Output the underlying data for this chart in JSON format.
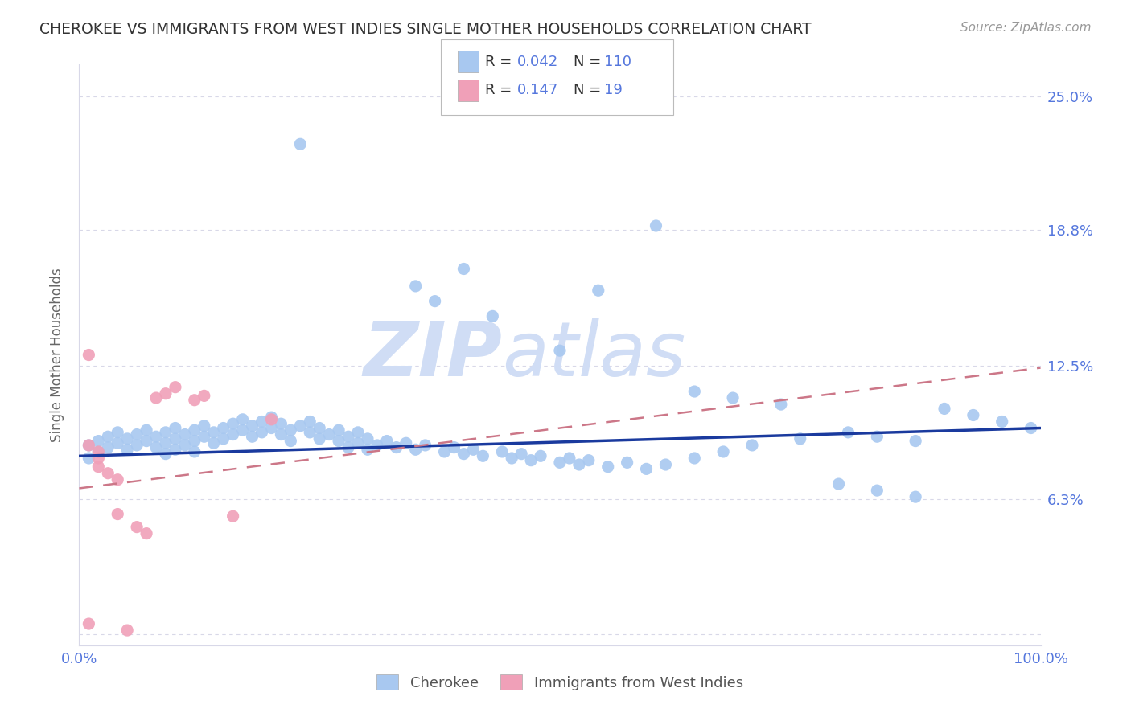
{
  "title": "CHEROKEE VS IMMIGRANTS FROM WEST INDIES SINGLE MOTHER HOUSEHOLDS CORRELATION CHART",
  "source": "Source: ZipAtlas.com",
  "ylabel": "Single Mother Households",
  "xlim": [
    0.0,
    1.0
  ],
  "ylim": [
    -0.005,
    0.265
  ],
  "ytick_positions": [
    0.0,
    0.063,
    0.125,
    0.188,
    0.25
  ],
  "ytick_labels": [
    "",
    "6.3%",
    "12.5%",
    "18.8%",
    "25.0%"
  ],
  "blue_color": "#a8c8f0",
  "pink_color": "#f0a0b8",
  "blue_line_color": "#1a3a9e",
  "pink_line_color": "#cc7788",
  "title_color": "#333333",
  "tick_color": "#5577dd",
  "background_color": "#ffffff",
  "grid_color": "#d8d8e8",
  "watermark_color": "#d0ddf5",
  "blue_line_start_y": 0.083,
  "blue_line_end_y": 0.096,
  "pink_line_start_y": 0.068,
  "pink_line_end_y": 0.124,
  "blue_x": [
    0.01,
    0.01,
    0.02,
    0.02,
    0.03,
    0.03,
    0.04,
    0.04,
    0.05,
    0.05,
    0.06,
    0.06,
    0.07,
    0.07,
    0.08,
    0.08,
    0.09,
    0.09,
    0.09,
    0.1,
    0.1,
    0.1,
    0.11,
    0.11,
    0.12,
    0.12,
    0.12,
    0.13,
    0.13,
    0.14,
    0.14,
    0.15,
    0.15,
    0.16,
    0.16,
    0.17,
    0.17,
    0.18,
    0.18,
    0.19,
    0.19,
    0.2,
    0.2,
    0.21,
    0.21,
    0.22,
    0.22,
    0.23,
    0.24,
    0.24,
    0.25,
    0.25,
    0.26,
    0.27,
    0.27,
    0.28,
    0.28,
    0.29,
    0.29,
    0.3,
    0.3,
    0.31,
    0.32,
    0.33,
    0.34,
    0.35,
    0.36,
    0.38,
    0.39,
    0.4,
    0.41,
    0.42,
    0.44,
    0.45,
    0.46,
    0.47,
    0.48,
    0.5,
    0.51,
    0.52,
    0.53,
    0.55,
    0.57,
    0.59,
    0.61,
    0.64,
    0.67,
    0.7,
    0.75,
    0.8,
    0.83,
    0.87,
    0.23,
    0.35,
    0.37,
    0.4,
    0.43,
    0.5,
    0.54,
    0.6,
    0.64,
    0.68,
    0.73,
    0.79,
    0.83,
    0.87,
    0.9,
    0.93,
    0.96,
    0.99
  ],
  "blue_y": [
    0.088,
    0.082,
    0.09,
    0.085,
    0.092,
    0.087,
    0.094,
    0.089,
    0.091,
    0.086,
    0.093,
    0.088,
    0.095,
    0.09,
    0.092,
    0.087,
    0.094,
    0.089,
    0.084,
    0.096,
    0.091,
    0.086,
    0.093,
    0.088,
    0.095,
    0.09,
    0.085,
    0.097,
    0.092,
    0.094,
    0.089,
    0.096,
    0.091,
    0.098,
    0.093,
    0.1,
    0.095,
    0.097,
    0.092,
    0.099,
    0.094,
    0.101,
    0.096,
    0.098,
    0.093,
    0.095,
    0.09,
    0.097,
    0.099,
    0.094,
    0.096,
    0.091,
    0.093,
    0.095,
    0.09,
    0.092,
    0.087,
    0.094,
    0.089,
    0.091,
    0.086,
    0.088,
    0.09,
    0.087,
    0.089,
    0.086,
    0.088,
    0.085,
    0.087,
    0.084,
    0.086,
    0.083,
    0.085,
    0.082,
    0.084,
    0.081,
    0.083,
    0.08,
    0.082,
    0.079,
    0.081,
    0.078,
    0.08,
    0.077,
    0.079,
    0.082,
    0.085,
    0.088,
    0.091,
    0.094,
    0.092,
    0.09,
    0.228,
    0.162,
    0.155,
    0.17,
    0.148,
    0.132,
    0.16,
    0.19,
    0.113,
    0.11,
    0.107,
    0.07,
    0.067,
    0.064,
    0.105,
    0.102,
    0.099,
    0.096
  ],
  "pink_x": [
    0.01,
    0.01,
    0.01,
    0.02,
    0.02,
    0.02,
    0.03,
    0.04,
    0.04,
    0.05,
    0.06,
    0.07,
    0.08,
    0.09,
    0.1,
    0.12,
    0.13,
    0.16,
    0.2
  ],
  "pink_y": [
    0.13,
    0.088,
    0.005,
    0.085,
    0.082,
    0.078,
    0.075,
    0.072,
    0.056,
    0.002,
    0.05,
    0.047,
    0.11,
    0.112,
    0.115,
    0.109,
    0.111,
    0.055,
    0.1
  ]
}
